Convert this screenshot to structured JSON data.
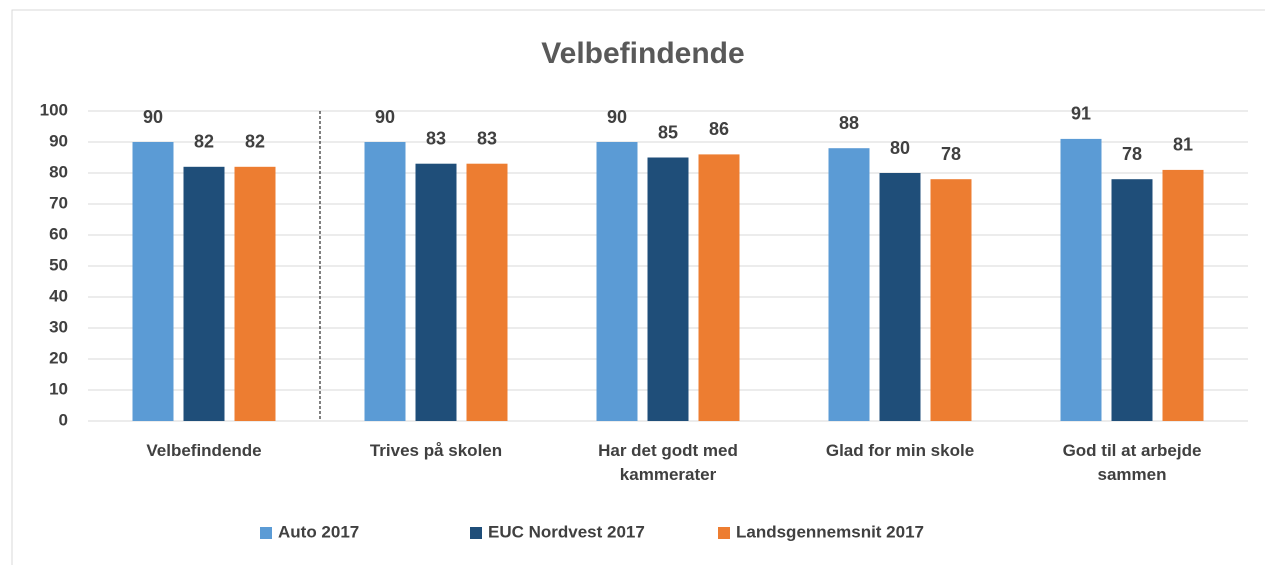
{
  "chart_data": {
    "type": "bar",
    "title": "Velbefindende",
    "categories": [
      "Velbefindende",
      "Trives på skolen",
      "Har det godt med kammerater",
      "Glad for min skole",
      "God til at arbejde sammen"
    ],
    "series": [
      {
        "name": "Auto 2017",
        "color": "#5b9bd5",
        "values": [
          90,
          90,
          90,
          88,
          91
        ]
      },
      {
        "name": "EUC Nordvest 2017",
        "color": "#1f4e79",
        "values": [
          82,
          83,
          85,
          80,
          78
        ]
      },
      {
        "name": "Landsgennemsnit 2017",
        "color": "#ed7d31",
        "values": [
          82,
          83,
          86,
          78,
          81
        ]
      }
    ],
    "ylim": [
      0,
      100
    ],
    "yticks": [
      0,
      10,
      20,
      30,
      40,
      50,
      60,
      70,
      80,
      90,
      100
    ],
    "grid": true,
    "legend": "bottom"
  }
}
